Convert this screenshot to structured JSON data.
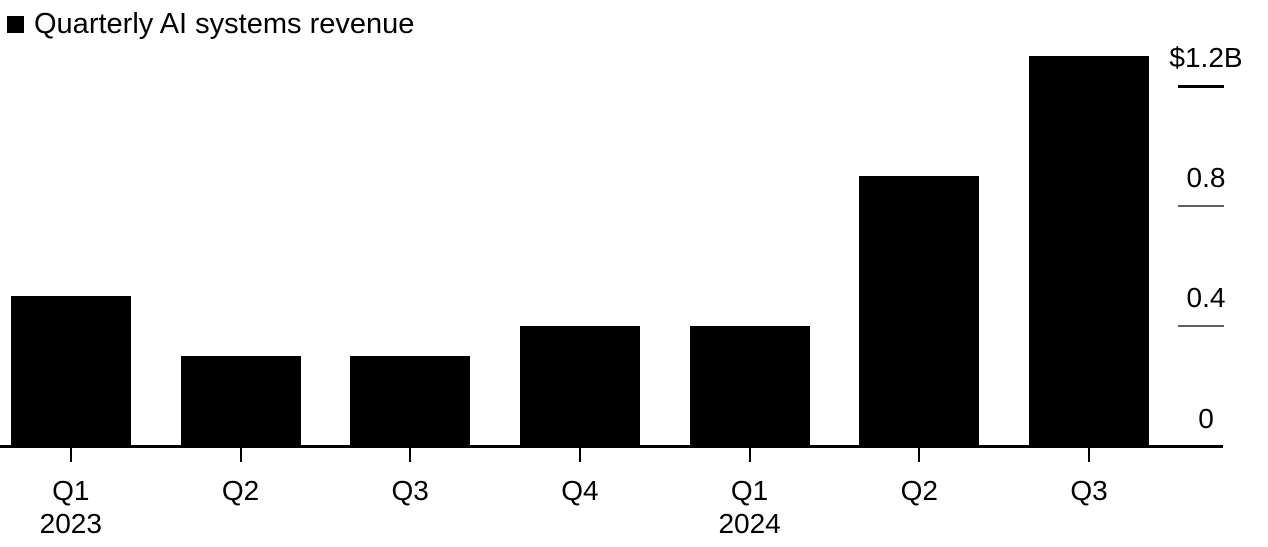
{
  "legend": {
    "label": "Quarterly AI systems revenue"
  },
  "chart_data": {
    "type": "bar",
    "title": "Quarterly AI systems revenue",
    "categories": [
      "Q1",
      "Q2",
      "Q3",
      "Q4",
      "Q1",
      "Q2",
      "Q3"
    ],
    "values": [
      0.5,
      0.3,
      0.3,
      0.4,
      0.4,
      0.9,
      1.3
    ],
    "year_markers": [
      {
        "label": "2023",
        "index": 0
      },
      {
        "label": "2024",
        "index": 4
      }
    ],
    "yticks": [
      {
        "value": 1.2,
        "label": "$1.2B"
      },
      {
        "value": 0.8,
        "label": "0.8"
      },
      {
        "value": 0.4,
        "label": "0.4"
      },
      {
        "value": 0.0,
        "label": "0"
      }
    ],
    "ylim": [
      0,
      1.3
    ],
    "xlabel": "",
    "ylabel": "",
    "grid": false,
    "legend_position": "top-left",
    "axis_side": "right",
    "colors": {
      "bar": "#000000",
      "baseline": "#000000",
      "major_tick": "#000000",
      "minor_tick": "#606060",
      "text": "#000000",
      "background": "#ffffff"
    }
  }
}
